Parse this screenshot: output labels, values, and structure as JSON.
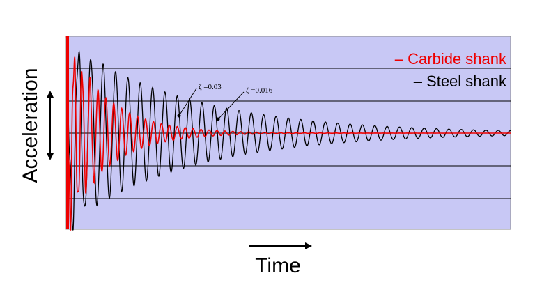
{
  "chart_data": {
    "type": "line",
    "title": "",
    "xlabel": "Time",
    "ylabel": "Acceleration",
    "ylim": [
      -1,
      1
    ],
    "xlim": [
      0,
      1
    ],
    "grid": true,
    "legend_placement": "top-right",
    "legend": [
      {
        "text": "– Carbide shank",
        "color": "#ee0000"
      },
      {
        "text": "– Steel shank",
        "color": "#000000"
      }
    ],
    "series": [
      {
        "name": "Carbide shank",
        "color": "#ee0000",
        "initial_amplitude": 0.95,
        "damping_ratio": 0.03,
        "cycles": 56
      },
      {
        "name": "Steel shank",
        "color": "#000000",
        "initial_amplitude": 0.95,
        "damping_ratio": 0.016,
        "cycles": 36
      }
    ],
    "annotations": [
      {
        "text": "ζ =0.03",
        "x": 0.25,
        "y": 0.05
      },
      {
        "text": "ζ =0.016",
        "x": 0.34,
        "y": 0.17
      }
    ]
  }
}
